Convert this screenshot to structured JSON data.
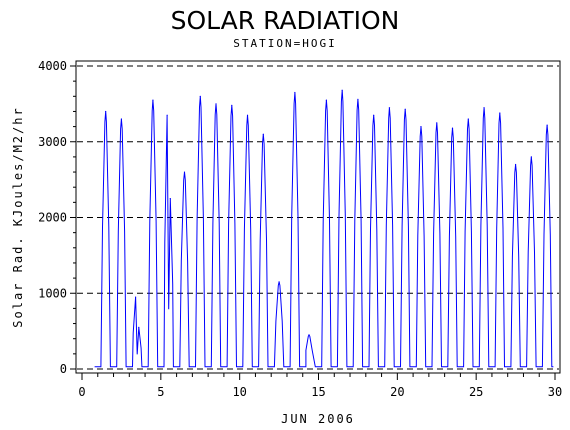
{
  "chart_data": {
    "type": "line",
    "title": "SOLAR RADIATION",
    "subtitle": "STATION=HOGI",
    "xlabel": "JUN 2006",
    "ylabel": "Solar Rad. KJoules/M2/hr",
    "xlim": [
      0,
      30
    ],
    "ylim": [
      0,
      4000
    ],
    "xticks": [
      0,
      5,
      10,
      15,
      20,
      25,
      30
    ],
    "yticks": [
      0,
      1000,
      2000,
      3000,
      4000
    ],
    "grid": "horizontal dashed",
    "series": [
      {
        "color": "#0000ff",
        "daily_peaks": [
          {
            "day": 1,
            "peaks": [
              [
                1.5,
                3400
              ]
            ]
          },
          {
            "day": 2,
            "peaks": [
              [
                2.5,
                3300
              ]
            ]
          },
          {
            "day": 3,
            "peaks": [
              [
                3.4,
                950
              ],
              [
                3.6,
                550
              ]
            ]
          },
          {
            "day": 4,
            "peaks": [
              [
                4.5,
                3550
              ]
            ]
          },
          {
            "day": 5,
            "peaks": [
              [
                5.4,
                3350
              ],
              [
                5.6,
                2250
              ]
            ]
          },
          {
            "day": 6,
            "peaks": [
              [
                6.5,
                2600
              ]
            ]
          },
          {
            "day": 7,
            "peaks": [
              [
                7.5,
                3600
              ]
            ]
          },
          {
            "day": 8,
            "peaks": [
              [
                8.5,
                3500
              ]
            ]
          },
          {
            "day": 9,
            "peaks": [
              [
                9.5,
                3480
              ]
            ]
          },
          {
            "day": 10,
            "peaks": [
              [
                10.5,
                3350
              ]
            ]
          },
          {
            "day": 11,
            "peaks": [
              [
                11.5,
                3100
              ]
            ]
          },
          {
            "day": 12,
            "peaks": [
              [
                12.5,
                1150
              ]
            ]
          },
          {
            "day": 13,
            "peaks": [
              [
                13.5,
                3650
              ]
            ]
          },
          {
            "day": 14,
            "peaks": [
              [
                14.4,
                450
              ]
            ]
          },
          {
            "day": 15,
            "peaks": [
              [
                15.5,
                3550
              ]
            ]
          },
          {
            "day": 16,
            "peaks": [
              [
                16.5,
                3680
              ]
            ]
          },
          {
            "day": 17,
            "peaks": [
              [
                17.5,
                3560
              ]
            ]
          },
          {
            "day": 18,
            "peaks": [
              [
                18.5,
                3350
              ]
            ]
          },
          {
            "day": 19,
            "peaks": [
              [
                19.5,
                3450
              ]
            ]
          },
          {
            "day": 20,
            "peaks": [
              [
                20.5,
                3430
              ]
            ]
          },
          {
            "day": 21,
            "peaks": [
              [
                21.5,
                3200
              ]
            ]
          },
          {
            "day": 22,
            "peaks": [
              [
                22.5,
                3250
              ]
            ]
          },
          {
            "day": 23,
            "peaks": [
              [
                23.5,
                3180
              ]
            ]
          },
          {
            "day": 24,
            "peaks": [
              [
                24.5,
                3300
              ]
            ]
          },
          {
            "day": 25,
            "peaks": [
              [
                25.5,
                3450
              ]
            ]
          },
          {
            "day": 26,
            "peaks": [
              [
                26.5,
                3380
              ]
            ]
          },
          {
            "day": 27,
            "peaks": [
              [
                27.5,
                2700
              ]
            ]
          },
          {
            "day": 28,
            "peaks": [
              [
                28.5,
                2800
              ]
            ]
          },
          {
            "day": 29,
            "peaks": [
              [
                29.5,
                3220
              ]
            ]
          }
        ]
      }
    ]
  }
}
